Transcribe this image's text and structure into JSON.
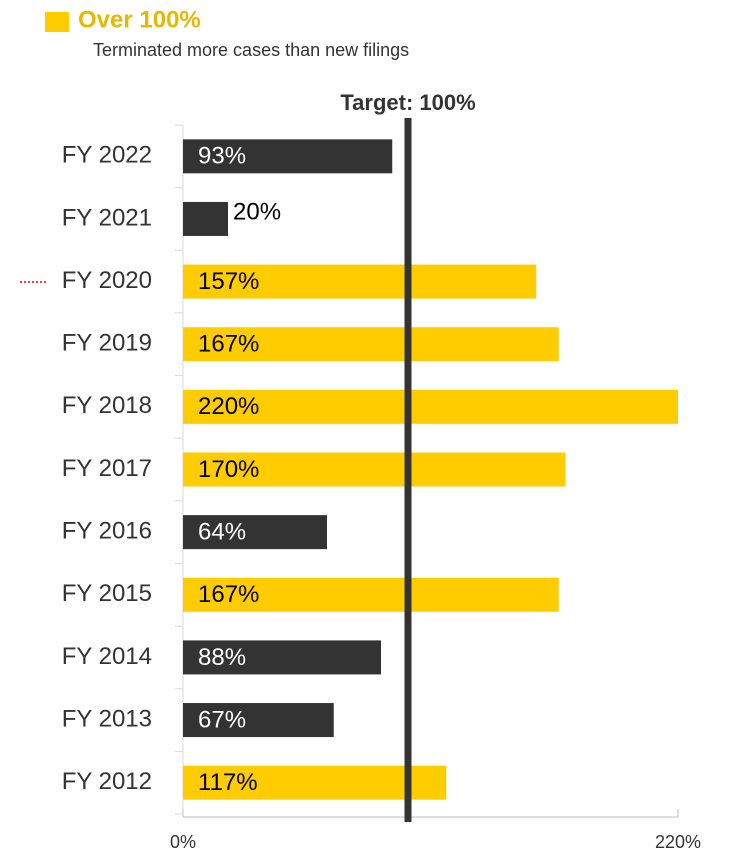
{
  "chart_data": {
    "type": "bar",
    "orientation": "horizontal",
    "legend": {
      "label": "Over 100%",
      "description": "Terminated more cases than new filings",
      "color": "#ffcc00"
    },
    "target": {
      "value": 100,
      "label": "Target: 100%"
    },
    "categories": [
      "FY 2022",
      "FY 2021",
      "FY 2020",
      "FY 2019",
      "FY 2018",
      "FY 2017",
      "FY 2016",
      "FY 2015",
      "FY 2014",
      "FY 2013",
      "FY 2012"
    ],
    "values": [
      93,
      20,
      157,
      167,
      220,
      170,
      64,
      167,
      88,
      67,
      117
    ],
    "value_labels": [
      "93%",
      "20%",
      "157%",
      "167%",
      "220%",
      "170%",
      "64%",
      "167%",
      "88%",
      "67%",
      "117%"
    ],
    "colors": [
      "#333333",
      "#333333",
      "#ffcc00",
      "#ffcc00",
      "#ffcc00",
      "#ffcc00",
      "#333333",
      "#ffcc00",
      "#333333",
      "#333333",
      "#ffcc00"
    ],
    "xlim": [
      0,
      220
    ],
    "xticks": [
      {
        "value": 0,
        "label": "0%"
      },
      {
        "value": 220,
        "label": "220%"
      }
    ]
  }
}
